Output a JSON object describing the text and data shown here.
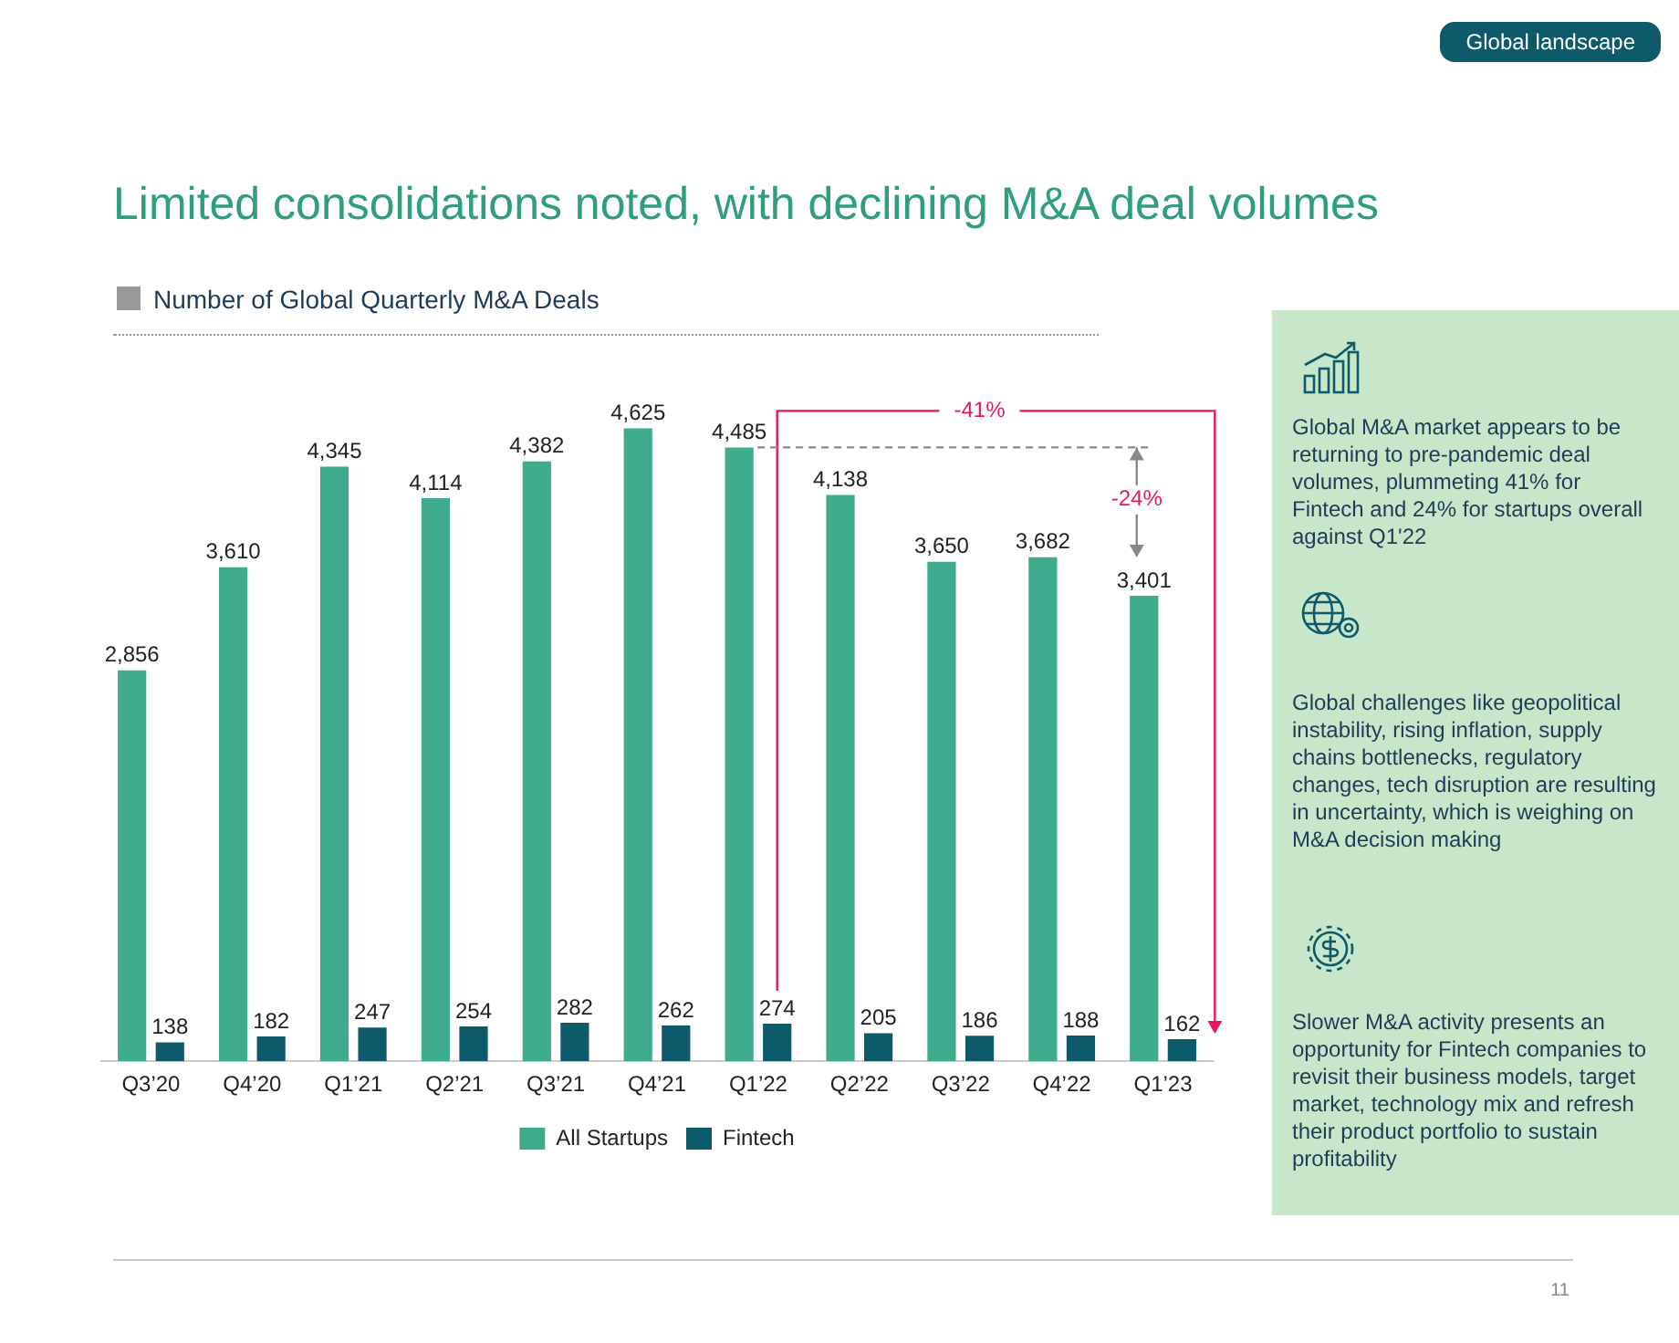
{
  "chart_data": {
    "type": "bar",
    "title": "Limited consolidations noted, with declining M&A deal volumes",
    "subtitle": "Number of Global Quarterly M&A Deals",
    "categories": [
      "Q3’20",
      "Q4’20",
      "Q1’21",
      "Q2’21",
      "Q3’21",
      "Q4’21",
      "Q1’22",
      "Q2’22",
      "Q3’22",
      "Q4’22",
      "Q1’23"
    ],
    "series": [
      {
        "name": "All Startups",
        "color": "#3dab8c",
        "values": [
          2856,
          3610,
          4345,
          4114,
          4382,
          4625,
          4485,
          4138,
          3650,
          3682,
          3401
        ],
        "value_labels": [
          "2,856",
          "3,610",
          "4,345",
          "4,114",
          "4,382",
          "4,625",
          "4,485",
          "4,138",
          "3,650",
          "3,682",
          "3,401"
        ]
      },
      {
        "name": "Fintech",
        "color": "#0e5a6b",
        "values": [
          138,
          182,
          247,
          254,
          282,
          262,
          274,
          205,
          186,
          188,
          162
        ],
        "value_labels": [
          "138",
          "182",
          "247",
          "254",
          "282",
          "262",
          "274",
          "205",
          "186",
          "188",
          "162"
        ]
      }
    ],
    "legend": "bottom",
    "grid": false,
    "annotations": [
      "Global landscape",
      "Global M&A market appears to be returning to pre-pandemic deal volumes, plummeting 41% for Fintech and 24% for startups overall against Q1'22",
      "Global challenges like geopolitical instability, rising inflation, supply chains bottlenecks, regulatory changes, tech disruption are resulting in uncertainty, which is weighing on M&A decision making",
      "Slower M&A activity presents an opportunity for Fintech companies to revisit their business models, target market, technology mix and refresh their product portfolio to sustain profitability",
      "-41%",
      "-24%",
      "11"
    ]
  }
}
